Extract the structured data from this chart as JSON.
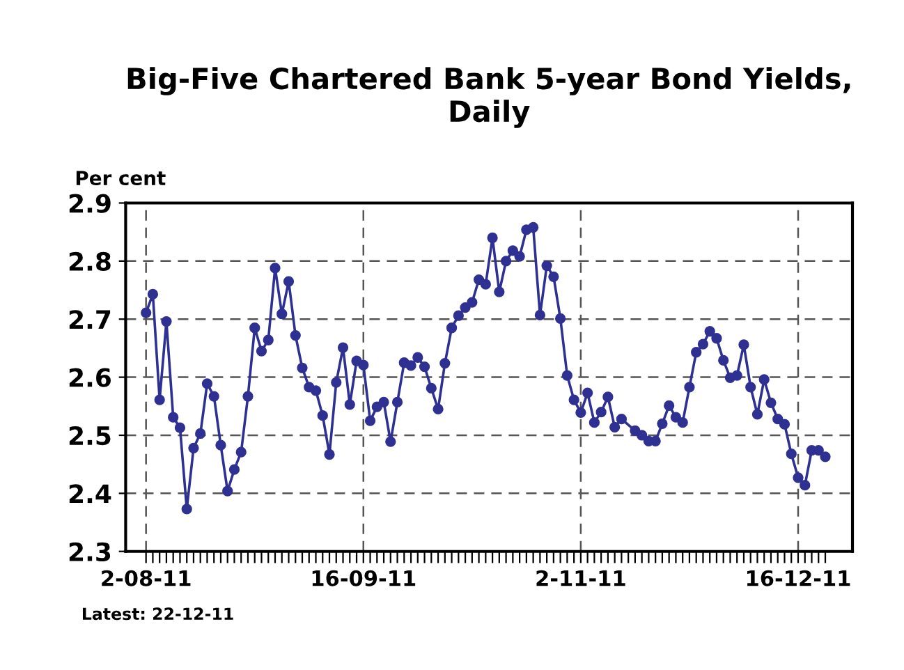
{
  "chart_data": {
    "type": "line",
    "title": "Big-Five Chartered Bank 5-year Bond Yields,\nDaily",
    "ylabel": "Per cent",
    "annotations": [
      "Latest: 22-12-11"
    ],
    "categories": [
      "2-08-11",
      null,
      null,
      null,
      null,
      null,
      null,
      null,
      null,
      null,
      null,
      null,
      null,
      null,
      null,
      null,
      null,
      null,
      null,
      null,
      null,
      null,
      null,
      null,
      null,
      null,
      null,
      null,
      null,
      null,
      null,
      null,
      "16-09-11",
      null,
      null,
      null,
      null,
      null,
      null,
      null,
      null,
      null,
      null,
      null,
      null,
      null,
      null,
      null,
      null,
      null,
      null,
      null,
      null,
      null,
      null,
      null,
      null,
      null,
      null,
      null,
      null,
      null,
      null,
      null,
      "2-11-11",
      null,
      null,
      null,
      null,
      null,
      null,
      null,
      null,
      null,
      null,
      null,
      null,
      null,
      null,
      null,
      null,
      null,
      null,
      null,
      null,
      null,
      null,
      null,
      null,
      null,
      null,
      null,
      null,
      null,
      null,
      null,
      "16-12-11",
      null,
      null,
      null,
      null
    ],
    "series": [
      {
        "color": "#2e3192",
        "values": [
          2.711,
          2.743,
          2.561,
          2.696,
          2.531,
          2.513,
          2.373,
          2.478,
          2.503,
          2.589,
          2.567,
          2.483,
          2.404,
          2.441,
          2.471,
          2.567,
          2.685,
          2.645,
          2.664,
          2.788,
          2.709,
          2.765,
          2.672,
          2.616,
          2.583,
          2.577,
          2.534,
          2.467,
          2.591,
          2.651,
          2.553,
          2.628,
          2.621,
          2.525,
          2.549,
          2.557,
          2.489,
          2.557,
          2.625,
          2.62,
          2.634,
          2.618,
          2.581,
          2.545,
          2.624,
          2.685,
          2.706,
          2.72,
          2.729,
          2.768,
          2.76,
          2.84,
          2.747,
          2.8,
          2.818,
          2.808,
          2.854,
          2.858,
          2.707,
          2.792,
          2.773,
          2.701,
          2.603,
          2.561,
          2.539,
          2.573,
          2.522,
          2.54,
          2.566,
          2.514,
          2.528,
          null,
          2.508,
          2.5,
          2.49,
          2.49,
          2.52,
          2.551,
          2.531,
          2.522,
          2.583,
          2.643,
          2.657,
          2.679,
          2.667,
          2.629,
          2.599,
          2.603,
          2.656,
          2.583,
          2.536,
          2.596,
          2.556,
          2.528,
          2.519,
          2.468,
          2.427,
          2.414,
          2.474,
          2.474,
          2.463
        ]
      }
    ],
    "ylim": [
      2.3,
      2.9
    ],
    "yticks": [
      2.3,
      2.4,
      2.5,
      2.6,
      2.7,
      2.8,
      2.9
    ],
    "grid": true,
    "marker": "circle",
    "line_style": "solid",
    "legend": false
  }
}
